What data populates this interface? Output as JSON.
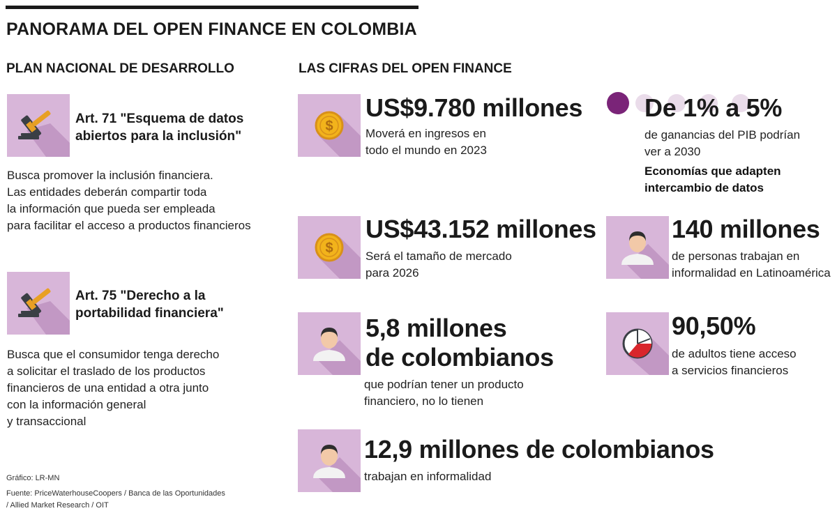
{
  "title": "PANORAMA DEL OPEN FINANCE EN COLOMBIA",
  "left": {
    "heading": "PLAN NACIONAL DE DESARROLLO",
    "articles": [
      {
        "icon": "gavel-icon",
        "title_lines": [
          "Art. 71 \"Esquema de datos",
          "abiertos para la inclusión\""
        ],
        "body_lines": [
          "Busca promover la inclusión financiera.",
          "Las entidades deberán compartir toda",
          "la información que pueda ser empleada",
          "para facilitar el acceso a productos financieros"
        ]
      },
      {
        "icon": "gavel-icon",
        "title_lines": [
          "Art. 75 \"Derecho a la",
          "portabilidad financiera\""
        ],
        "body_lines": [
          "Busca que el consumidor tenga derecho",
          "a solicitar el traslado de los productos",
          "financieros de una entidad a otra junto",
          "con la información general",
          "y transaccional"
        ]
      }
    ],
    "credits": {
      "grafico": "Gráfico: LR-MN",
      "fuente_lines": [
        "Fuente: PriceWaterhouseCoopers / Banca de las Oportunidades",
        "/ Allied Market Research / OIT"
      ]
    }
  },
  "right": {
    "heading": "LAS CIFRAS DEL OPEN FINANCE",
    "stats": [
      {
        "icon": "coin-icon",
        "value": "US$9.780 millones",
        "sub_lines": [
          "Moverá en ingresos en",
          "todo el mundo en 2023"
        ]
      },
      {
        "icon": "dots-icon",
        "value": "De 1% a 5%",
        "sub_lines": [
          "de ganancias del PIB podrían",
          "ver a 2030"
        ],
        "bold_lines": [
          "Economías que adapten",
          "intercambio de datos"
        ]
      },
      {
        "icon": "coin-icon",
        "value": "US$43.152 millones",
        "sub_lines": [
          "Será el tamaño de mercado",
          "para 2026"
        ]
      },
      {
        "icon": "person-icon",
        "value": "140 millones",
        "sub_lines": [
          "de personas trabajan en",
          "informalidad en Latinoamérica"
        ]
      },
      {
        "icon": "person-icon",
        "value_lines": [
          "5,8 millones",
          "de colombianos"
        ],
        "sub_lines": [
          "que podrían tener un producto",
          "financiero, no lo tienen"
        ]
      },
      {
        "icon": "pie-icon",
        "value": "90,50%",
        "sub_lines": [
          "de adultos tiene acceso",
          "a servicios financieros"
        ]
      },
      {
        "icon": "person-icon",
        "value": "12,9 millones de colombianos",
        "sub_lines": [
          "trabajan en informalidad"
        ]
      }
    ]
  },
  "colors": {
    "tile": "#d8b6d9",
    "tile_shadow": "#c298c4",
    "dot_filled": "#7a2478",
    "dot_empty": "#eadcea",
    "coin": "#f2b31b",
    "pie_red": "#d9262c"
  }
}
